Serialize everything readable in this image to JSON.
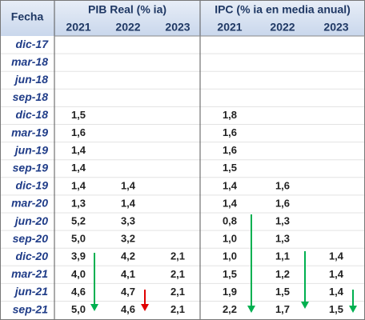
{
  "header": {
    "fecha": "Fecha",
    "groups": [
      {
        "title": "PIB Real  (% ia)",
        "years": [
          "2021",
          "2022",
          "2023"
        ]
      },
      {
        "title": "IPC (% ia en media anual)",
        "years": [
          "2021",
          "2022",
          "2023"
        ]
      }
    ]
  },
  "rows": [
    {
      "date": "dic-17",
      "pib": [
        null,
        null,
        null
      ],
      "ipc": [
        null,
        null,
        null
      ]
    },
    {
      "date": "mar-18",
      "pib": [
        null,
        null,
        null
      ],
      "ipc": [
        null,
        null,
        null
      ]
    },
    {
      "date": "jun-18",
      "pib": [
        null,
        null,
        null
      ],
      "ipc": [
        null,
        null,
        null
      ]
    },
    {
      "date": "sep-18",
      "pib": [
        null,
        null,
        null
      ],
      "ipc": [
        null,
        null,
        null
      ]
    },
    {
      "date": "dic-18",
      "pib": [
        "1,5",
        null,
        null
      ],
      "ipc": [
        "1,8",
        null,
        null
      ]
    },
    {
      "date": "mar-19",
      "pib": [
        "1,6",
        null,
        null
      ],
      "ipc": [
        "1,6",
        null,
        null
      ]
    },
    {
      "date": "jun-19",
      "pib": [
        "1,4",
        null,
        null
      ],
      "ipc": [
        "1,6",
        null,
        null
      ]
    },
    {
      "date": "sep-19",
      "pib": [
        "1,4",
        null,
        null
      ],
      "ipc": [
        "1,5",
        null,
        null
      ]
    },
    {
      "date": "dic-19",
      "pib": [
        "1,4",
        "1,4",
        null
      ],
      "ipc": [
        "1,4",
        "1,6",
        null
      ]
    },
    {
      "date": "mar-20",
      "pib": [
        "1,3",
        "1,4",
        null
      ],
      "ipc": [
        "1,4",
        "1,6",
        null
      ]
    },
    {
      "date": "jun-20",
      "pib": [
        "5,2",
        "3,3",
        null
      ],
      "ipc": [
        "0,8",
        "1,3",
        null
      ]
    },
    {
      "date": "sep-20",
      "pib": [
        "5,0",
        "3,2",
        null
      ],
      "ipc": [
        "1,0",
        "1,3",
        null
      ]
    },
    {
      "date": "dic-20",
      "pib": [
        "3,9",
        "4,2",
        "2,1"
      ],
      "ipc": [
        "1,0",
        "1,1",
        "1,4"
      ]
    },
    {
      "date": "mar-21",
      "pib": [
        "4,0",
        "4,1",
        "2,1"
      ],
      "ipc": [
        "1,5",
        "1,2",
        "1,4"
      ]
    },
    {
      "date": "jun-21",
      "pib": [
        "4,6",
        "4,7",
        "2,1"
      ],
      "ipc": [
        "1,9",
        "1,5",
        "1,4"
      ]
    },
    {
      "date": "sep-21",
      "pib": [
        "5,0",
        "4,6",
        "2,1"
      ],
      "ipc": [
        "2,2",
        "1,7",
        "1,5"
      ]
    }
  ]
}
